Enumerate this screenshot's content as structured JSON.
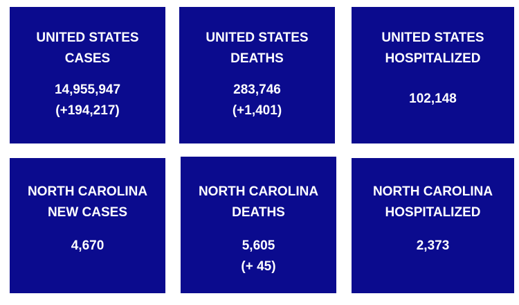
{
  "tiles": [
    {
      "title": [
        "UNITED STATES",
        "CASES"
      ],
      "value": [
        "14,955,947",
        "(+194,217)"
      ]
    },
    {
      "title": [
        "UNITED STATES",
        "DEATHS"
      ],
      "value": [
        "283,746",
        "(+1,401)"
      ]
    },
    {
      "title": [
        "UNITED STATES",
        "HOSPITALIZED"
      ],
      "value": [
        "102,148"
      ]
    },
    {
      "title": [
        "NORTH CAROLINA",
        "NEW CASES"
      ],
      "value": [
        "4,670"
      ]
    },
    {
      "title": [
        "NORTH CAROLINA",
        "DEATHS"
      ],
      "value": [
        "5,605",
        "(+ 45)"
      ]
    },
    {
      "title": [
        "NORTH CAROLINA",
        "HOSPITALIZED"
      ],
      "value": [
        "2,373"
      ]
    }
  ]
}
